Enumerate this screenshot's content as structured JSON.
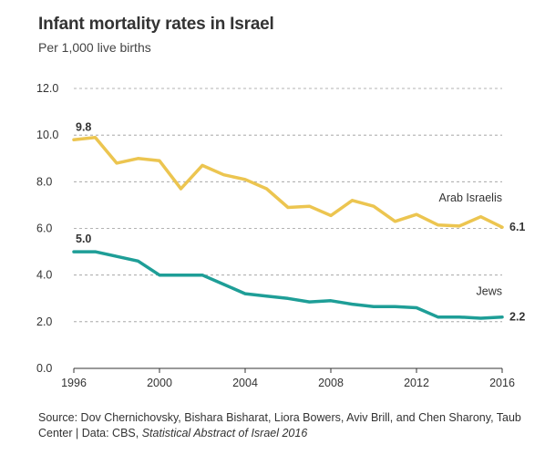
{
  "chart_data": {
    "type": "line",
    "title": "Infant mortality rates in Israel",
    "subtitle": "Per 1,000 live births",
    "xlabel": "",
    "ylabel": "",
    "xlim": [
      1996,
      2016
    ],
    "ylim": [
      0,
      12
    ],
    "x_ticks": [
      1996,
      2000,
      2004,
      2008,
      2012,
      2016
    ],
    "y_ticks": [
      "0.0",
      "2.0",
      "4.0",
      "6.0",
      "8.0",
      "10.0",
      "12.0"
    ],
    "grid": "horizontal dashed",
    "x": [
      1996,
      1997,
      1998,
      1999,
      2000,
      2001,
      2002,
      2003,
      2004,
      2005,
      2006,
      2007,
      2008,
      2009,
      2010,
      2011,
      2012,
      2013,
      2014,
      2015,
      2016
    ],
    "series": [
      {
        "name": "Arab Israelis",
        "color": "#ecc550",
        "values": [
          9.8,
          9.9,
          8.8,
          9.0,
          8.9,
          7.7,
          8.7,
          8.3,
          8.1,
          7.7,
          6.9,
          6.95,
          6.55,
          7.2,
          6.95,
          6.3,
          6.6,
          6.15,
          6.1,
          6.5,
          6.05
        ],
        "start_label": "9.8",
        "end_label": "6.1"
      },
      {
        "name": "Jews",
        "color": "#1e9e97",
        "values": [
          5.0,
          5.0,
          4.8,
          4.6,
          4.0,
          4.0,
          4.0,
          3.6,
          3.2,
          3.1,
          3.0,
          2.85,
          2.9,
          2.75,
          2.65,
          2.65,
          2.6,
          2.2,
          2.2,
          2.15,
          2.2
        ],
        "start_label": "5.0",
        "end_label": "2.2"
      }
    ]
  },
  "source": {
    "prefix": "Source: Dov Chernichovsky, Bishara Bisharat, Liora Bowers, Aviv Brill, and Chen Sharony, Taub Center | Data: CBS, ",
    "italic": "Statistical Abstract of Israel 2016"
  }
}
